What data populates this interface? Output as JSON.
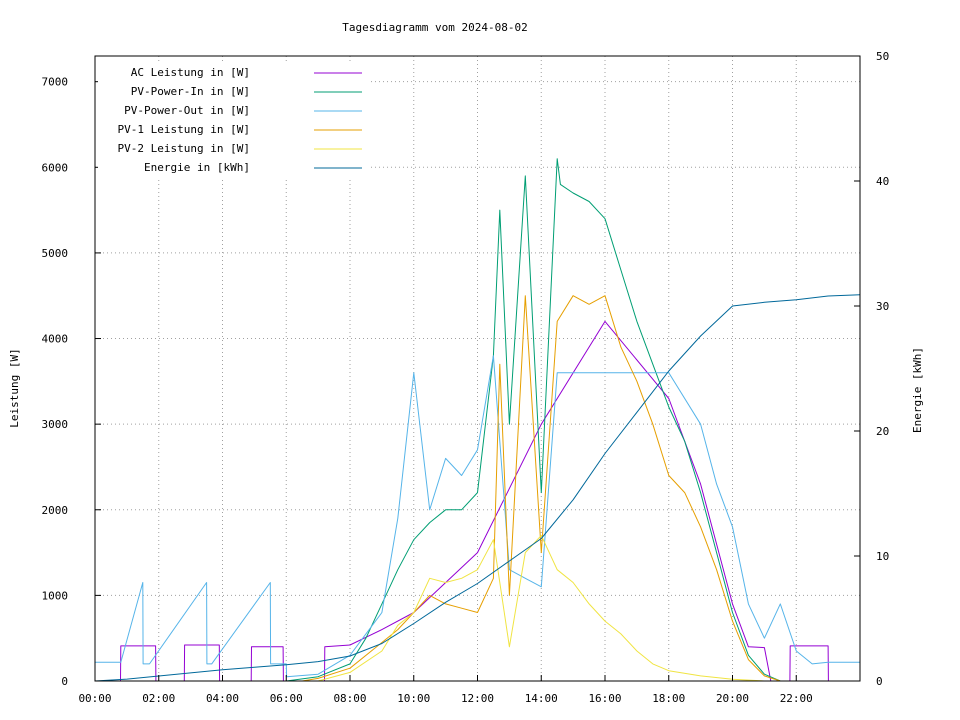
{
  "chart_data": {
    "type": "line",
    "title": "Tagesdiagramm vom 2024-08-02",
    "ylabel": "Leistung [W]",
    "y2label": "Energie [kWh]",
    "x_ticks": [
      "00:00",
      "02:00",
      "04:00",
      "06:00",
      "08:00",
      "10:00",
      "12:00",
      "14:00",
      "16:00",
      "18:00",
      "20:00",
      "22:00"
    ],
    "xlim_hours": [
      0,
      24
    ],
    "ylim": [
      0,
      7300
    ],
    "y_ticks": [
      0,
      1000,
      2000,
      3000,
      4000,
      5000,
      6000,
      7000
    ],
    "y2lim": [
      0,
      50
    ],
    "y2_ticks": [
      0,
      10,
      20,
      30,
      40,
      50
    ],
    "grid": true,
    "legend_position": "top-left",
    "series": [
      {
        "name": "AC Leistung in [W]",
        "axis": "y",
        "color": "#9400d3",
        "hours": [
          0,
          0.8,
          0.81,
          1.9,
          1.91,
          2.8,
          2.81,
          3.9,
          3.91,
          4.9,
          4.91,
          5.9,
          5.91,
          7.2,
          7.21,
          8.0,
          9.0,
          10.0,
          12.0,
          14.0,
          16.0,
          18.0,
          19.0,
          20.0,
          20.5,
          21.0,
          21.2,
          21.8,
          21.81,
          23.0,
          23.01,
          24.0
        ],
        "values": [
          0,
          0,
          410,
          410,
          0,
          0,
          420,
          420,
          0,
          0,
          400,
          400,
          0,
          0,
          400,
          420,
          600,
          800,
          1500,
          3000,
          4200,
          3300,
          2300,
          900,
          400,
          390,
          0,
          0,
          410,
          410,
          0,
          0
        ]
      },
      {
        "name": "PV-Power-In in [W]",
        "axis": "y",
        "color": "#009e73",
        "hours": [
          0,
          6.0,
          7.0,
          8.0,
          8.5,
          9.0,
          9.5,
          10.0,
          10.5,
          11.0,
          11.5,
          12.0,
          12.5,
          12.7,
          13.0,
          13.5,
          14.0,
          14.5,
          14.6,
          15.0,
          15.5,
          16.0,
          16.5,
          17.0,
          17.5,
          18.0,
          18.5,
          19.0,
          19.5,
          20.0,
          20.5,
          21.0,
          21.5,
          24.0
        ],
        "values": [
          0,
          0,
          50,
          200,
          500,
          900,
          1300,
          1650,
          1850,
          2000,
          2000,
          2200,
          3800,
          5500,
          3000,
          5900,
          2200,
          6100,
          5800,
          5700,
          5600,
          5400,
          4800,
          4200,
          3700,
          3200,
          2800,
          2200,
          1500,
          800,
          300,
          80,
          0,
          0
        ]
      },
      {
        "name": "PV-Power-Out in [W]",
        "axis": "y",
        "color": "#56b4e9",
        "hours": [
          0,
          0.8,
          0.81,
          1.5,
          1.51,
          1.7,
          1.71,
          3.5,
          3.51,
          3.65,
          3.66,
          5.5,
          5.51,
          6.0,
          6.01,
          7.0,
          8.0,
          9.0,
          9.5,
          10.0,
          10.5,
          11.0,
          11.5,
          12.0,
          12.5,
          13.0,
          13.5,
          14.0,
          14.5,
          15.0,
          16.0,
          17.0,
          18.0,
          19.0,
          19.5,
          20.0,
          20.5,
          21.0,
          21.5,
          22.0,
          22.5,
          23.0,
          23.5,
          24.0
        ],
        "values": [
          220,
          220,
          220,
          1150,
          200,
          200,
          200,
          1150,
          200,
          200,
          200,
          1150,
          200,
          200,
          50,
          80,
          300,
          800,
          1900,
          3600,
          2000,
          2600,
          2400,
          2700,
          3800,
          1300,
          1200,
          1100,
          3600,
          3600,
          3600,
          3600,
          3600,
          3000,
          2300,
          1800,
          900,
          500,
          900,
          350,
          200,
          220,
          220,
          220
        ]
      },
      {
        "name": "PV-1 Leistung in [W]",
        "axis": "y",
        "color": "#e69f00",
        "hours": [
          0,
          6.5,
          7.0,
          8.0,
          9.0,
          9.5,
          10.0,
          10.5,
          11.0,
          11.5,
          12.0,
          12.5,
          12.7,
          13.0,
          13.5,
          14.0,
          14.5,
          15.0,
          15.5,
          16.0,
          16.5,
          17.0,
          17.5,
          18.0,
          18.5,
          19.0,
          19.5,
          20.0,
          20.5,
          21.0,
          21.5,
          24.0
        ],
        "values": [
          0,
          0,
          30,
          150,
          450,
          600,
          800,
          1000,
          900,
          850,
          800,
          1200,
          3700,
          1000,
          4500,
          1500,
          4200,
          4500,
          4400,
          4500,
          3900,
          3500,
          3000,
          2400,
          2200,
          1800,
          1300,
          700,
          250,
          60,
          0,
          0
        ]
      },
      {
        "name": "PV-2 Leistung in [W]",
        "axis": "y",
        "color": "#f0e442",
        "hours": [
          0,
          7.0,
          8.0,
          9.0,
          9.5,
          10.0,
          10.5,
          11.0,
          11.5,
          12.0,
          12.5,
          13.0,
          13.5,
          14.0,
          14.5,
          15.0,
          15.5,
          16.0,
          16.5,
          17.0,
          17.5,
          18.0,
          19.0,
          20.0,
          21.0,
          22.0,
          24.0
        ],
        "values": [
          0,
          0,
          100,
          350,
          650,
          800,
          1200,
          1150,
          1200,
          1300,
          1650,
          400,
          1500,
          1700,
          1300,
          1150,
          900,
          700,
          550,
          350,
          200,
          120,
          60,
          20,
          0,
          0,
          0
        ]
      },
      {
        "name": "Energie in [kWh]",
        "axis": "y2",
        "color": "#00689a",
        "hours": [
          0,
          1,
          2,
          3,
          4,
          5,
          6,
          7,
          8,
          9,
          10,
          11,
          12,
          13,
          14,
          15,
          16,
          17,
          18,
          19,
          20,
          21,
          22,
          23,
          24
        ],
        "values": [
          0,
          0.15,
          0.4,
          0.65,
          0.9,
          1.1,
          1.3,
          1.55,
          2.0,
          3.0,
          4.6,
          6.3,
          7.8,
          9.6,
          11.4,
          14.5,
          18.2,
          21.5,
          24.8,
          27.6,
          30.0,
          30.3,
          30.5,
          30.8,
          30.9
        ]
      }
    ]
  }
}
